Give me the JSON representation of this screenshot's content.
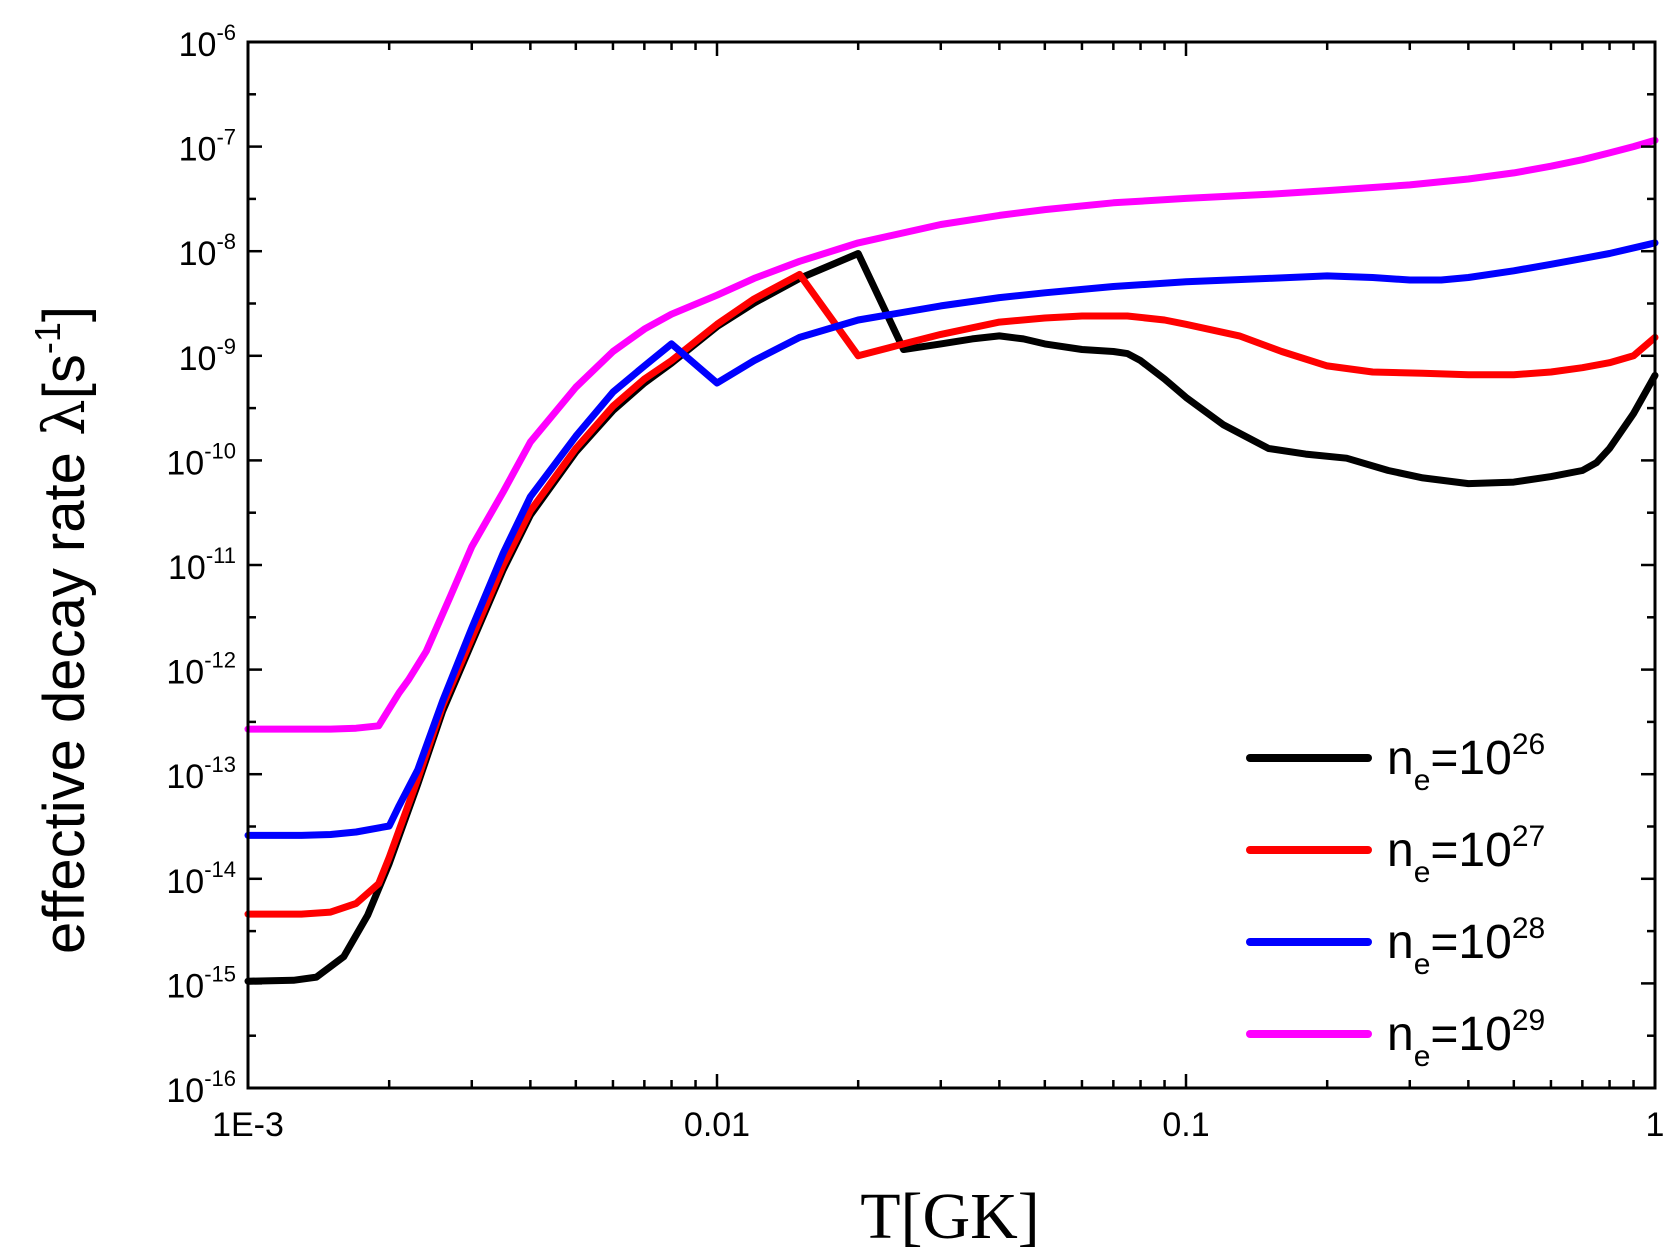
{
  "chart_data": {
    "type": "line",
    "title": "",
    "xlabel": "T[GK]",
    "ylabel": {
      "main": "effective decay rate ",
      "lambda": "λ",
      "unit_open": "[s",
      "unit_sup": "-1",
      "unit_close": "]"
    },
    "xscale": "log",
    "yscale": "log",
    "xlim": [
      0.001,
      1
    ],
    "ylim": [
      1e-16,
      1e-06
    ],
    "grid": false,
    "legend_position": "bottom-right",
    "x_ticks": [
      {
        "value": 0.001,
        "label": "1E-3"
      },
      {
        "value": 0.01,
        "label": "0.01"
      },
      {
        "value": 0.1,
        "label": "0.1"
      },
      {
        "value": 1,
        "label": "1"
      }
    ],
    "y_ticks": [
      {
        "value": 1e-16,
        "base": "10",
        "exp": "-16"
      },
      {
        "value": 1e-15,
        "base": "10",
        "exp": "-15"
      },
      {
        "value": 1e-14,
        "base": "10",
        "exp": "-14"
      },
      {
        "value": 1e-13,
        "base": "10",
        "exp": "-13"
      },
      {
        "value": 1e-12,
        "base": "10",
        "exp": "-12"
      },
      {
        "value": 1e-11,
        "base": "10",
        "exp": "-11"
      },
      {
        "value": 1e-10,
        "base": "10",
        "exp": "-10"
      },
      {
        "value": 1e-09,
        "base": "10",
        "exp": "-9"
      },
      {
        "value": 1e-08,
        "base": "10",
        "exp": "-8"
      },
      {
        "value": 1e-07,
        "base": "10",
        "exp": "-7"
      },
      {
        "value": 1e-06,
        "base": "10",
        "exp": "-6"
      }
    ],
    "series": [
      {
        "name": "n_e=10^26",
        "legend": {
          "prefix": "n",
          "sub": "e",
          "mid": "=10",
          "sup": "26"
        },
        "color": "#000000",
        "points": [
          [
            0.001,
            1.05e-15
          ],
          [
            0.00125,
            1.07e-15
          ],
          [
            0.0014,
            1.15e-15
          ],
          [
            0.0016,
            1.8e-15
          ],
          [
            0.0018,
            4.5e-15
          ],
          [
            0.002,
            1.4e-14
          ],
          [
            0.0023,
            8e-14
          ],
          [
            0.0026,
            4e-13
          ],
          [
            0.003,
            1.8e-12
          ],
          [
            0.0035,
            9e-12
          ],
          [
            0.004,
            3e-11
          ],
          [
            0.005,
            1.2e-10
          ],
          [
            0.006,
            3e-10
          ],
          [
            0.007,
            5.5e-10
          ],
          [
            0.008,
            8.5e-10
          ],
          [
            0.01,
            1.9e-09
          ],
          [
            0.012,
            3.2e-09
          ],
          [
            0.015,
            5.5e-09
          ],
          [
            0.02,
            9.5e-09
          ],
          [
            0.025,
            1.15e-09
          ],
          [
            0.03,
            1.3e-09
          ],
          [
            0.035,
            1.45e-09
          ],
          [
            0.04,
            1.55e-09
          ],
          [
            0.045,
            1.45e-09
          ],
          [
            0.05,
            1.3e-09
          ],
          [
            0.06,
            1.15e-09
          ],
          [
            0.07,
            1.1e-09
          ],
          [
            0.075,
            1.05e-09
          ],
          [
            0.08,
            9e-10
          ],
          [
            0.09,
            6e-10
          ],
          [
            0.1,
            4e-10
          ],
          [
            0.12,
            2.2e-10
          ],
          [
            0.15,
            1.3e-10
          ],
          [
            0.18,
            1.15e-10
          ],
          [
            0.22,
            1.05e-10
          ],
          [
            0.27,
            8e-11
          ],
          [
            0.32,
            6.8e-11
          ],
          [
            0.4,
            6e-11
          ],
          [
            0.5,
            6.2e-11
          ],
          [
            0.6,
            7e-11
          ],
          [
            0.7,
            8e-11
          ],
          [
            0.75,
            9.5e-11
          ],
          [
            0.8,
            1.3e-10
          ],
          [
            0.9,
            2.8e-10
          ],
          [
            1.0,
            6.5e-10
          ]
        ]
      },
      {
        "name": "n_e=10^27",
        "legend": {
          "prefix": "n",
          "sub": "e",
          "mid": "=10",
          "sup": "27"
        },
        "color": "#ff0000",
        "points": [
          [
            0.001,
            4.6e-15
          ],
          [
            0.0013,
            4.6e-15
          ],
          [
            0.0015,
            4.8e-15
          ],
          [
            0.0017,
            5.8e-15
          ],
          [
            0.0019,
            9e-15
          ],
          [
            0.002,
            1.6e-14
          ],
          [
            0.0023,
            9e-14
          ],
          [
            0.0026,
            4.5e-13
          ],
          [
            0.003,
            2e-12
          ],
          [
            0.0035,
            1e-11
          ],
          [
            0.004,
            3.3e-11
          ],
          [
            0.005,
            1.3e-10
          ],
          [
            0.006,
            3.3e-10
          ],
          [
            0.007,
            6e-10
          ],
          [
            0.008,
            9e-10
          ],
          [
            0.01,
            2e-09
          ],
          [
            0.012,
            3.5e-09
          ],
          [
            0.015,
            6e-09
          ],
          [
            0.02,
            1e-09
          ],
          [
            0.025,
            1.3e-09
          ],
          [
            0.03,
            1.6e-09
          ],
          [
            0.04,
            2.1e-09
          ],
          [
            0.05,
            2.3e-09
          ],
          [
            0.06,
            2.4e-09
          ],
          [
            0.075,
            2.4e-09
          ],
          [
            0.09,
            2.2e-09
          ],
          [
            0.1,
            2e-09
          ],
          [
            0.13,
            1.55e-09
          ],
          [
            0.16,
            1.1e-09
          ],
          [
            0.2,
            8e-10
          ],
          [
            0.25,
            7e-10
          ],
          [
            0.32,
            6.8e-10
          ],
          [
            0.4,
            6.6e-10
          ],
          [
            0.5,
            6.6e-10
          ],
          [
            0.6,
            7e-10
          ],
          [
            0.7,
            7.7e-10
          ],
          [
            0.8,
            8.6e-10
          ],
          [
            0.9,
            1e-09
          ],
          [
            1.0,
            1.5e-09
          ]
        ]
      },
      {
        "name": "n_e=10^28",
        "legend": {
          "prefix": "n",
          "sub": "e",
          "mid": "=10",
          "sup": "28"
        },
        "color": "#0000ff",
        "points": [
          [
            0.001,
            2.6e-14
          ],
          [
            0.0013,
            2.6e-14
          ],
          [
            0.0015,
            2.65e-14
          ],
          [
            0.0017,
            2.8e-14
          ],
          [
            0.002,
            3.2e-14
          ],
          [
            0.0021,
            5e-14
          ],
          [
            0.0023,
            1.1e-13
          ],
          [
            0.0026,
            5e-13
          ],
          [
            0.003,
            2.5e-12
          ],
          [
            0.0035,
            1.3e-11
          ],
          [
            0.004,
            4.5e-11
          ],
          [
            0.005,
            1.7e-10
          ],
          [
            0.006,
            4.5e-10
          ],
          [
            0.007,
            8e-10
          ],
          [
            0.008,
            1.3e-09
          ],
          [
            0.01,
            5.5e-10
          ],
          [
            0.012,
            9e-10
          ],
          [
            0.015,
            1.5e-09
          ],
          [
            0.02,
            2.2e-09
          ],
          [
            0.03,
            3e-09
          ],
          [
            0.04,
            3.6e-09
          ],
          [
            0.05,
            4e-09
          ],
          [
            0.07,
            4.6e-09
          ],
          [
            0.1,
            5.1e-09
          ],
          [
            0.15,
            5.5e-09
          ],
          [
            0.2,
            5.8e-09
          ],
          [
            0.25,
            5.6e-09
          ],
          [
            0.3,
            5.3e-09
          ],
          [
            0.35,
            5.3e-09
          ],
          [
            0.4,
            5.6e-09
          ],
          [
            0.5,
            6.5e-09
          ],
          [
            0.6,
            7.5e-09
          ],
          [
            0.7,
            8.5e-09
          ],
          [
            0.8,
            9.5e-09
          ],
          [
            1.0,
            1.2e-08
          ]
        ]
      },
      {
        "name": "n_e=10^29",
        "legend": {
          "prefix": "n",
          "sub": "e",
          "mid": "=10",
          "sup": "29"
        },
        "color": "#ff00ff",
        "points": [
          [
            0.001,
            2.7e-13
          ],
          [
            0.0013,
            2.7e-13
          ],
          [
            0.0015,
            2.7e-13
          ],
          [
            0.0017,
            2.75e-13
          ],
          [
            0.0019,
            2.9e-13
          ],
          [
            0.0021,
            6e-13
          ],
          [
            0.0022,
            8e-13
          ],
          [
            0.0024,
            1.5e-12
          ],
          [
            0.0027,
            5e-12
          ],
          [
            0.003,
            1.5e-11
          ],
          [
            0.0035,
            5e-11
          ],
          [
            0.004,
            1.5e-10
          ],
          [
            0.005,
            5e-10
          ],
          [
            0.006,
            1.1e-09
          ],
          [
            0.007,
            1.8e-09
          ],
          [
            0.008,
            2.5e-09
          ],
          [
            0.01,
            3.8e-09
          ],
          [
            0.012,
            5.5e-09
          ],
          [
            0.015,
            8e-09
          ],
          [
            0.02,
            1.2e-08
          ],
          [
            0.03,
            1.8e-08
          ],
          [
            0.04,
            2.2e-08
          ],
          [
            0.05,
            2.5e-08
          ],
          [
            0.07,
            2.9e-08
          ],
          [
            0.1,
            3.2e-08
          ],
          [
            0.15,
            3.5e-08
          ],
          [
            0.2,
            3.8e-08
          ],
          [
            0.3,
            4.3e-08
          ],
          [
            0.4,
            4.9e-08
          ],
          [
            0.5,
            5.6e-08
          ],
          [
            0.6,
            6.5e-08
          ],
          [
            0.7,
            7.5e-08
          ],
          [
            0.8,
            8.7e-08
          ],
          [
            0.9,
            1e-07
          ],
          [
            1.0,
            1.15e-07
          ]
        ]
      }
    ]
  }
}
